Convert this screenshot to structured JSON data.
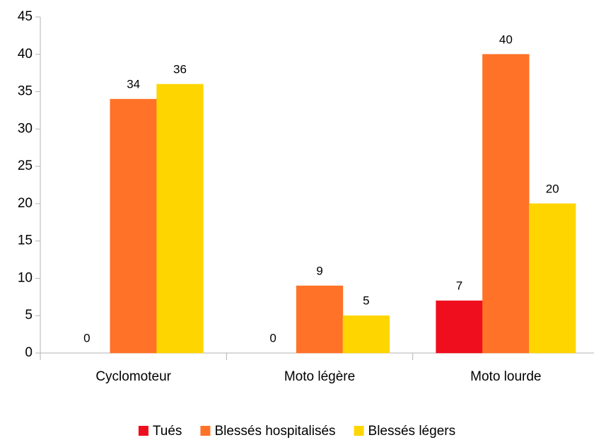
{
  "chart_data": {
    "type": "bar",
    "categories": [
      "Cyclomoteur",
      "Moto légère",
      "Moto lourde"
    ],
    "series": [
      {
        "name": "Tués",
        "color": "#ee0e1e",
        "values": [
          0,
          0,
          7
        ]
      },
      {
        "name": "Blessés hospitalisés",
        "color": "#ff7227",
        "values": [
          34,
          9,
          40
        ]
      },
      {
        "name": "Blessés légers",
        "color": "#ffd500",
        "values": [
          36,
          5,
          20
        ]
      }
    ],
    "ylim": [
      0,
      45
    ],
    "yticks": [
      0,
      5,
      10,
      15,
      20,
      25,
      30,
      35,
      40,
      45
    ],
    "grid": false,
    "legend": "bottom"
  }
}
